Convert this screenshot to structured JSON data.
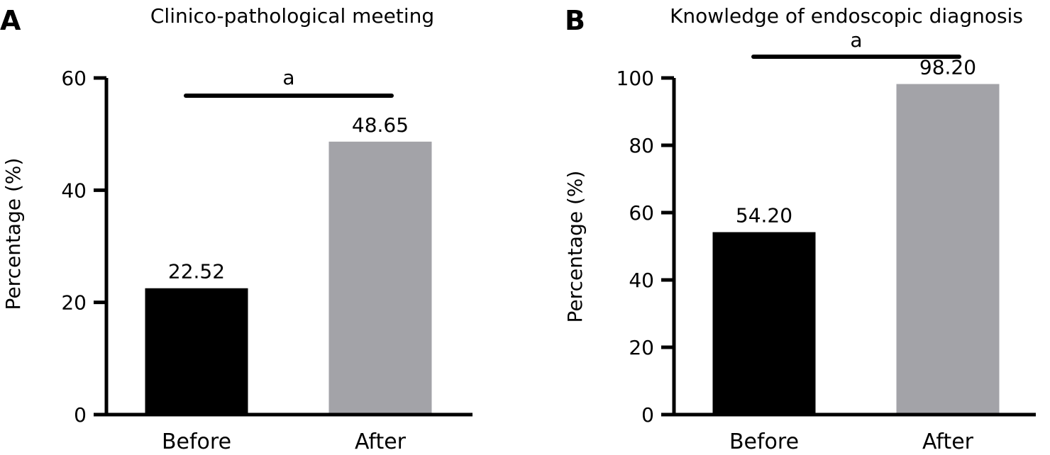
{
  "chart_data": [
    {
      "type": "bar",
      "panel": "A",
      "title": "Clinico-pathological meeting",
      "ylabel": "Percentage (%)",
      "xlabel": "",
      "categories": [
        "Before",
        "After"
      ],
      "values": [
        22.52,
        48.65
      ],
      "data_labels": [
        "22.52",
        "48.65"
      ],
      "colors": [
        "#000000",
        "#a3a3a8"
      ],
      "ylim": [
        0,
        60
      ],
      "yticks": [
        0,
        20,
        40,
        60
      ],
      "significance": "a",
      "grid": false,
      "legend": "none"
    },
    {
      "type": "bar",
      "panel": "B",
      "title": "Knowledge of endoscopic diagnosis",
      "ylabel": "Percentage (%)",
      "xlabel": "",
      "categories": [
        "Before",
        "After"
      ],
      "values": [
        54.2,
        98.2
      ],
      "data_labels": [
        "54.20",
        "98.20"
      ],
      "colors": [
        "#000000",
        "#a3a3a8"
      ],
      "ylim": [
        0,
        100
      ],
      "yticks": [
        0,
        20,
        40,
        60,
        80,
        100
      ],
      "significance": "a",
      "grid": false,
      "legend": "none"
    }
  ]
}
